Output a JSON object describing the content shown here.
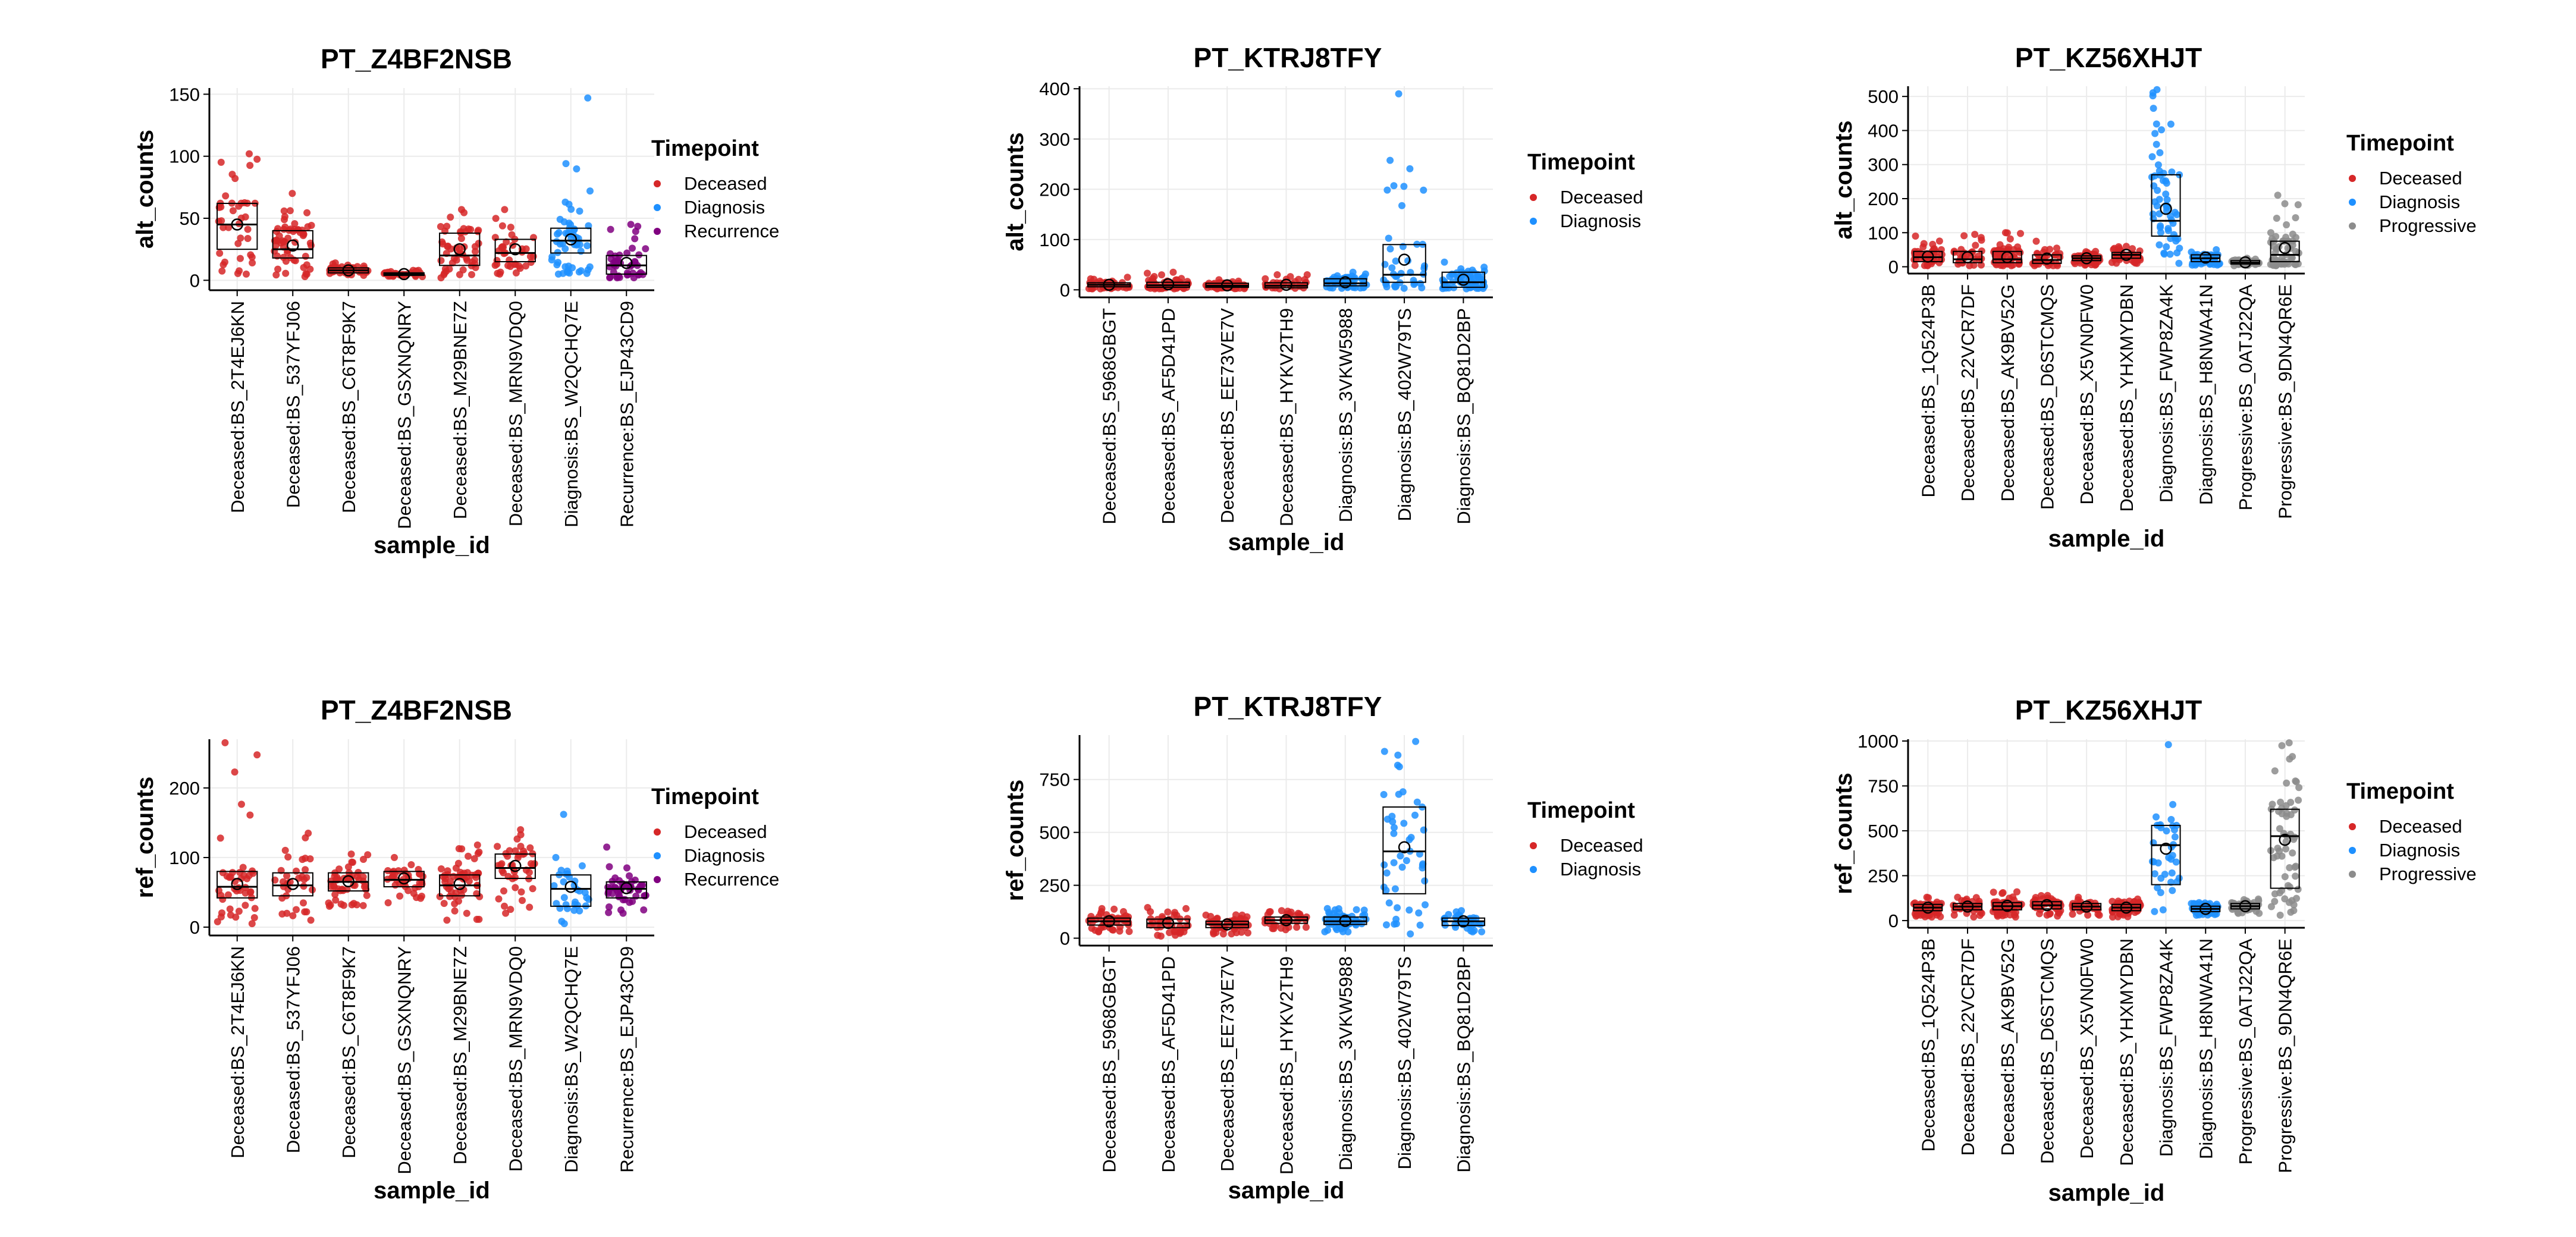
{
  "colors": {
    "Deceased": "#d62728",
    "Diagnosis": "#1e90ff",
    "Recurrence": "#800080",
    "Progressive": "#8c8c8c",
    "grid": "#ebebeb",
    "axis": "#000000"
  },
  "chart_data": [
    {
      "type": "box",
      "title": "PT_Z4BF2NSB",
      "xlabel": "sample_id",
      "ylabel": "alt_counts",
      "ylim": [
        -8,
        155
      ],
      "yticks": [
        0,
        50,
        100,
        150
      ],
      "legend": {
        "title": "Timepoint",
        "entries": [
          "Deceased",
          "Diagnosis",
          "Recurrence"
        ],
        "placement": "right"
      },
      "categories": [
        "Deceased:BS_2T4EJ6KN",
        "Deceased:BS_537YFJ06",
        "Deceased:BS_C6T8F9K7",
        "Deceased:BS_GSXNQNRY",
        "Deceased:BS_M29BNE7Z",
        "Deceased:BS_MRN9VDQ0",
        "Diagnosis:BS_W2QCHQ7E",
        "Recurrence:BS_EJP43CD9"
      ],
      "groups": [
        "Deceased",
        "Deceased",
        "Deceased",
        "Deceased",
        "Deceased",
        "Deceased",
        "Diagnosis",
        "Recurrence"
      ],
      "boxes": [
        {
          "q1": 25,
          "median": 45,
          "q3": 62,
          "mean": 45,
          "min": 5,
          "max": 102
        },
        {
          "q1": 18,
          "median": 25,
          "q3": 40,
          "mean": 28,
          "min": 3,
          "max": 70
        },
        {
          "q1": 6,
          "median": 8,
          "q3": 10,
          "mean": 8,
          "min": 4,
          "max": 14
        },
        {
          "q1": 4,
          "median": 5,
          "q3": 6,
          "mean": 5,
          "min": 3,
          "max": 8
        },
        {
          "q1": 12,
          "median": 20,
          "q3": 38,
          "mean": 25,
          "min": 2,
          "max": 57
        },
        {
          "q1": 15,
          "median": 22,
          "q3": 33,
          "mean": 25,
          "min": 5,
          "max": 57
        },
        {
          "q1": 22,
          "median": 32,
          "q3": 42,
          "mean": 33,
          "min": 5,
          "max": 147
        },
        {
          "q1": 5,
          "median": 12,
          "q3": 20,
          "mean": 14,
          "min": 2,
          "max": 45
        }
      ]
    },
    {
      "type": "box",
      "title": "PT_KTRJ8TFY",
      "xlabel": "sample_id",
      "ylabel": "alt_counts",
      "ylim": [
        -15,
        405
      ],
      "yticks": [
        0,
        100,
        200,
        300,
        400
      ],
      "legend": {
        "title": "Timepoint",
        "entries": [
          "Deceased",
          "Diagnosis"
        ],
        "placement": "right"
      },
      "categories": [
        "Deceased:BS_5968GBGT",
        "Deceased:BS_AF5D41PD",
        "Deceased:BS_EE73VE7V",
        "Deceased:BS_HYKV2TH9",
        "Diagnosis:BS_3VKW5988",
        "Diagnosis:BS_402W79TS",
        "Diagnosis:BS_BQ81D2BP"
      ],
      "groups": [
        "Deceased",
        "Deceased",
        "Deceased",
        "Deceased",
        "Diagnosis",
        "Diagnosis",
        "Diagnosis"
      ],
      "boxes": [
        {
          "q1": 6,
          "median": 10,
          "q3": 14,
          "mean": 10,
          "min": 2,
          "max": 25
        },
        {
          "q1": 5,
          "median": 9,
          "q3": 15,
          "mean": 11,
          "min": 2,
          "max": 35
        },
        {
          "q1": 5,
          "median": 8,
          "q3": 13,
          "mean": 9,
          "min": 2,
          "max": 20
        },
        {
          "q1": 4,
          "median": 8,
          "q3": 14,
          "mean": 10,
          "min": 2,
          "max": 30
        },
        {
          "q1": 8,
          "median": 13,
          "q3": 22,
          "mean": 15,
          "min": 3,
          "max": 35
        },
        {
          "q1": 15,
          "median": 30,
          "q3": 90,
          "mean": 60,
          "min": 3,
          "max": 390
        },
        {
          "q1": 5,
          "median": 15,
          "q3": 35,
          "mean": 20,
          "min": 2,
          "max": 55
        }
      ]
    },
    {
      "type": "box",
      "title": "PT_KZ56XHJT",
      "xlabel": "sample_id",
      "ylabel": "alt_counts",
      "ylim": [
        -20,
        530
      ],
      "yticks": [
        0,
        100,
        200,
        300,
        400,
        500
      ],
      "legend": {
        "title": "Timepoint",
        "entries": [
          "Deceased",
          "Diagnosis",
          "Progressive"
        ],
        "placement": "right"
      },
      "categories": [
        "Deceased:BS_1Q524P3B",
        "Deceased:BS_22VCR7DF",
        "Deceased:BS_AK9BV52G",
        "Deceased:BS_D6STCMQS",
        "Deceased:BS_X5VN0FW0",
        "Deceased:BS_YHXMYDBN",
        "Diagnosis:BS_FWP8ZA4K",
        "Diagnosis:BS_H8NWA41N",
        "Progressive:BS_0ATJ22QA",
        "Progressive:BS_9DN4QR6E"
      ],
      "groups": [
        "Deceased",
        "Deceased",
        "Deceased",
        "Deceased",
        "Deceased",
        "Deceased",
        "Diagnosis",
        "Diagnosis",
        "Progressive",
        "Progressive"
      ],
      "boxes": [
        {
          "q1": 15,
          "median": 28,
          "q3": 45,
          "mean": 30,
          "min": 3,
          "max": 90
        },
        {
          "q1": 12,
          "median": 22,
          "q3": 45,
          "mean": 28,
          "min": 3,
          "max": 95
        },
        {
          "q1": 12,
          "median": 22,
          "q3": 45,
          "mean": 28,
          "min": 3,
          "max": 100
        },
        {
          "q1": 10,
          "median": 20,
          "q3": 35,
          "mean": 24,
          "min": 3,
          "max": 75
        },
        {
          "q1": 18,
          "median": 25,
          "q3": 32,
          "mean": 25,
          "min": 5,
          "max": 45
        },
        {
          "q1": 25,
          "median": 35,
          "q3": 42,
          "mean": 35,
          "min": 10,
          "max": 60
        },
        {
          "q1": 90,
          "median": 135,
          "q3": 270,
          "mean": 170,
          "min": 10,
          "max": 520
        },
        {
          "q1": 15,
          "median": 25,
          "q3": 35,
          "mean": 27,
          "min": 5,
          "max": 50
        },
        {
          "q1": 8,
          "median": 12,
          "q3": 18,
          "mean": 13,
          "min": 3,
          "max": 25
        },
        {
          "q1": 15,
          "median": 35,
          "q3": 75,
          "mean": 55,
          "min": 3,
          "max": 210
        }
      ]
    },
    {
      "type": "box",
      "title": "PT_Z4BF2NSB",
      "xlabel": "sample_id",
      "ylabel": "ref_counts",
      "ylim": [
        -12,
        270
      ],
      "yticks": [
        0,
        100,
        200
      ],
      "legend": {
        "title": "Timepoint",
        "entries": [
          "Deceased",
          "Diagnosis",
          "Recurrence"
        ],
        "placement": "right"
      },
      "categories": [
        "Deceased:BS_2T4EJ6KN",
        "Deceased:BS_537YFJ06",
        "Deceased:BS_C6T8F9K7",
        "Deceased:BS_GSXNQNRY",
        "Deceased:BS_M29BNE7Z",
        "Deceased:BS_MRN9VDQ0",
        "Diagnosis:BS_W2QCHQ7E",
        "Recurrence:BS_EJP43CD9"
      ],
      "groups": [
        "Deceased",
        "Deceased",
        "Deceased",
        "Deceased",
        "Deceased",
        "Deceased",
        "Diagnosis",
        "Recurrence"
      ],
      "boxes": [
        {
          "q1": 42,
          "median": 58,
          "q3": 80,
          "mean": 62,
          "min": 5,
          "max": 265
        },
        {
          "q1": 45,
          "median": 60,
          "q3": 78,
          "mean": 62,
          "min": 10,
          "max": 135
        },
        {
          "q1": 52,
          "median": 65,
          "q3": 78,
          "mean": 66,
          "min": 30,
          "max": 105
        },
        {
          "q1": 58,
          "median": 68,
          "q3": 80,
          "mean": 70,
          "min": 35,
          "max": 100
        },
        {
          "q1": 45,
          "median": 60,
          "q3": 75,
          "mean": 62,
          "min": 10,
          "max": 118
        },
        {
          "q1": 70,
          "median": 85,
          "q3": 105,
          "mean": 88,
          "min": 20,
          "max": 140
        },
        {
          "q1": 30,
          "median": 55,
          "q3": 75,
          "mean": 58,
          "min": 5,
          "max": 162
        },
        {
          "q1": 42,
          "median": 55,
          "q3": 65,
          "mean": 56,
          "min": 20,
          "max": 115
        }
      ]
    },
    {
      "type": "box",
      "title": "PT_KTRJ8TFY",
      "xlabel": "sample_id",
      "ylabel": "ref_counts",
      "ylim": [
        -35,
        960
      ],
      "yticks": [
        0,
        250,
        500,
        750
      ],
      "legend": {
        "title": "Timepoint",
        "entries": [
          "Deceased",
          "Diagnosis"
        ],
        "placement": "right"
      },
      "categories": [
        "Deceased:BS_5968GBGT",
        "Deceased:BS_AF5D41PD",
        "Deceased:BS_EE73VE7V",
        "Deceased:BS_HYKV2TH9",
        "Diagnosis:BS_3VKW5988",
        "Diagnosis:BS_402W79TS",
        "Diagnosis:BS_BQ81D2BP"
      ],
      "groups": [
        "Deceased",
        "Deceased",
        "Deceased",
        "Deceased",
        "Diagnosis",
        "Diagnosis",
        "Diagnosis"
      ],
      "boxes": [
        {
          "q1": 62,
          "median": 80,
          "q3": 95,
          "mean": 80,
          "min": 30,
          "max": 140
        },
        {
          "q1": 50,
          "median": 70,
          "q3": 90,
          "mean": 72,
          "min": 10,
          "max": 145
        },
        {
          "q1": 50,
          "median": 65,
          "q3": 80,
          "mean": 65,
          "min": 20,
          "max": 110
        },
        {
          "q1": 70,
          "median": 85,
          "q3": 100,
          "mean": 85,
          "min": 40,
          "max": 130
        },
        {
          "q1": 65,
          "median": 80,
          "q3": 100,
          "mean": 82,
          "min": 30,
          "max": 140
        },
        {
          "q1": 210,
          "median": 410,
          "q3": 620,
          "mean": 430,
          "min": 20,
          "max": 930
        },
        {
          "q1": 60,
          "median": 80,
          "q3": 95,
          "mean": 80,
          "min": 30,
          "max": 130
        }
      ]
    },
    {
      "type": "box",
      "title": "PT_KZ56XHJT",
      "xlabel": "sample_id",
      "ylabel": "ref_counts",
      "ylim": [
        -40,
        1010
      ],
      "yticks": [
        0,
        250,
        500,
        750,
        1000
      ],
      "legend": {
        "title": "Timepoint",
        "entries": [
          "Deceased",
          "Diagnosis",
          "Progressive"
        ],
        "placement": "right"
      },
      "categories": [
        "Deceased:BS_1Q524P3B",
        "Deceased:BS_22VCR7DF",
        "Deceased:BS_AK9BV52G",
        "Deceased:BS_D6STCMQS",
        "Deceased:BS_X5VN0FW0",
        "Deceased:BS_YHXMYDBN",
        "Diagnosis:BS_FWP8ZA4K",
        "Diagnosis:BS_H8NWA41N",
        "Progressive:BS_0ATJ22QA",
        "Progressive:BS_9DN4QR6E"
      ],
      "groups": [
        "Deceased",
        "Deceased",
        "Deceased",
        "Deceased",
        "Deceased",
        "Deceased",
        "Diagnosis",
        "Diagnosis",
        "Progressive",
        "Progressive"
      ],
      "boxes": [
        {
          "q1": 55,
          "median": 72,
          "q3": 90,
          "mean": 72,
          "min": 20,
          "max": 130
        },
        {
          "q1": 60,
          "median": 78,
          "q3": 95,
          "mean": 78,
          "min": 20,
          "max": 130
        },
        {
          "q1": 60,
          "median": 80,
          "q3": 100,
          "mean": 82,
          "min": 20,
          "max": 160
        },
        {
          "q1": 65,
          "median": 85,
          "q3": 105,
          "mean": 86,
          "min": 25,
          "max": 140
        },
        {
          "q1": 60,
          "median": 78,
          "q3": 95,
          "mean": 78,
          "min": 30,
          "max": 130
        },
        {
          "q1": 55,
          "median": 72,
          "q3": 90,
          "mean": 72,
          "min": 20,
          "max": 120
        },
        {
          "q1": 200,
          "median": 420,
          "q3": 530,
          "mean": 400,
          "min": 50,
          "max": 980
        },
        {
          "q1": 50,
          "median": 65,
          "q3": 80,
          "mean": 65,
          "min": 30,
          "max": 100
        },
        {
          "q1": 65,
          "median": 80,
          "q3": 95,
          "mean": 80,
          "min": 40,
          "max": 120
        },
        {
          "q1": 180,
          "median": 470,
          "q3": 620,
          "mean": 450,
          "min": 30,
          "max": 990
        }
      ]
    }
  ]
}
